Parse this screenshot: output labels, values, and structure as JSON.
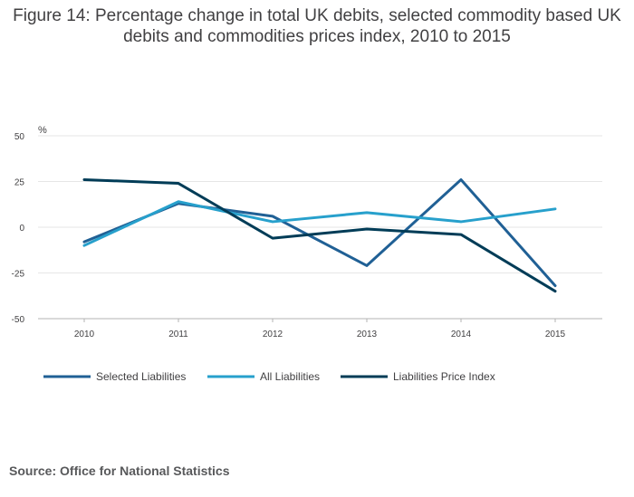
{
  "title": "Figure 14: Percentage change in total UK debits, selected commodity based UK debits and commodities prices index, 2010 to 2015",
  "source": "Source: Office for National Statistics",
  "chart_data": {
    "type": "line",
    "title": "Figure 14: Percentage change in total UK debits, selected commodity based UK debits and commodities prices index, 2010 to 2015",
    "xlabel": "",
    "ylabel": "%",
    "x": [
      "2010",
      "2011",
      "2012",
      "2013",
      "2014",
      "2015"
    ],
    "ylim": [
      -50,
      50
    ],
    "yticks": [
      50,
      25,
      0,
      -25,
      -50
    ],
    "grid": true,
    "legend_position": "bottom",
    "series": [
      {
        "name": "Selected Liabilities",
        "color": "#206095",
        "values": [
          -8,
          13,
          6,
          -21,
          26,
          -32
        ]
      },
      {
        "name": "All Liabilities",
        "color": "#27a0cc",
        "values": [
          -10,
          14,
          3,
          8,
          3,
          10
        ]
      },
      {
        "name": "Liabilities Price Index",
        "color": "#003c57",
        "values": [
          26,
          24,
          -6,
          -1,
          -4,
          -35
        ]
      }
    ]
  }
}
